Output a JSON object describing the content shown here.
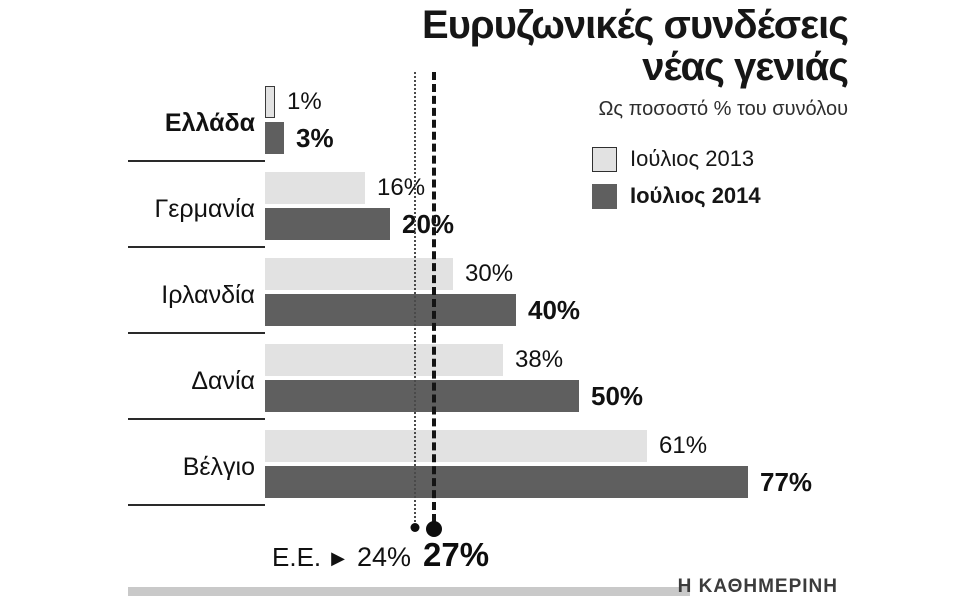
{
  "header": {
    "title_line1": "Ευρυζωνικές συνδέσεις",
    "title_line2": "νέας γενιάς",
    "subtitle": "Ως ποσοστό % του συνόλου"
  },
  "legend": {
    "position": "top-right",
    "items": [
      {
        "label": "Ιούλιος 2013",
        "color": "#e2e2e2"
      },
      {
        "label": "Ιούλιος 2014",
        "color": "#5f5f5f"
      }
    ]
  },
  "chart_data": {
    "type": "bar",
    "orientation": "horizontal",
    "title": "Ευρυζωνικές συνδέσεις νέας γενιάς",
    "subtitle": "Ως ποσοστό % του συνόλου",
    "categories": [
      "Ελλάδα",
      "Γερμανία",
      "Ιρλανδία",
      "Δανία",
      "Βέλγιο"
    ],
    "series": [
      {
        "name": "Ιούλιος 2013",
        "color": "#e2e2e2",
        "values": [
          1,
          16,
          30,
          38,
          61
        ]
      },
      {
        "name": "Ιούλιος 2014",
        "color": "#5f5f5f",
        "values": [
          3,
          20,
          40,
          50,
          77
        ]
      }
    ],
    "value_suffix": "%",
    "xlim": [
      0,
      80
    ],
    "grid": false,
    "reference_label": "Ε.Ε.",
    "reference_lines": [
      {
        "series": "Ιούλιος 2013",
        "value": 24,
        "style": "thin-dotted"
      },
      {
        "series": "Ιούλιος 2014",
        "value": 27,
        "style": "thick-dashed"
      }
    ]
  },
  "eu_annotation": {
    "label": "Ε.Ε.",
    "marker": "▶",
    "value_2013": "24%",
    "value_2014": "27%"
  },
  "footer": {
    "brand": "Η ΚΑΘΗΜΕΡΙΝΗ"
  }
}
